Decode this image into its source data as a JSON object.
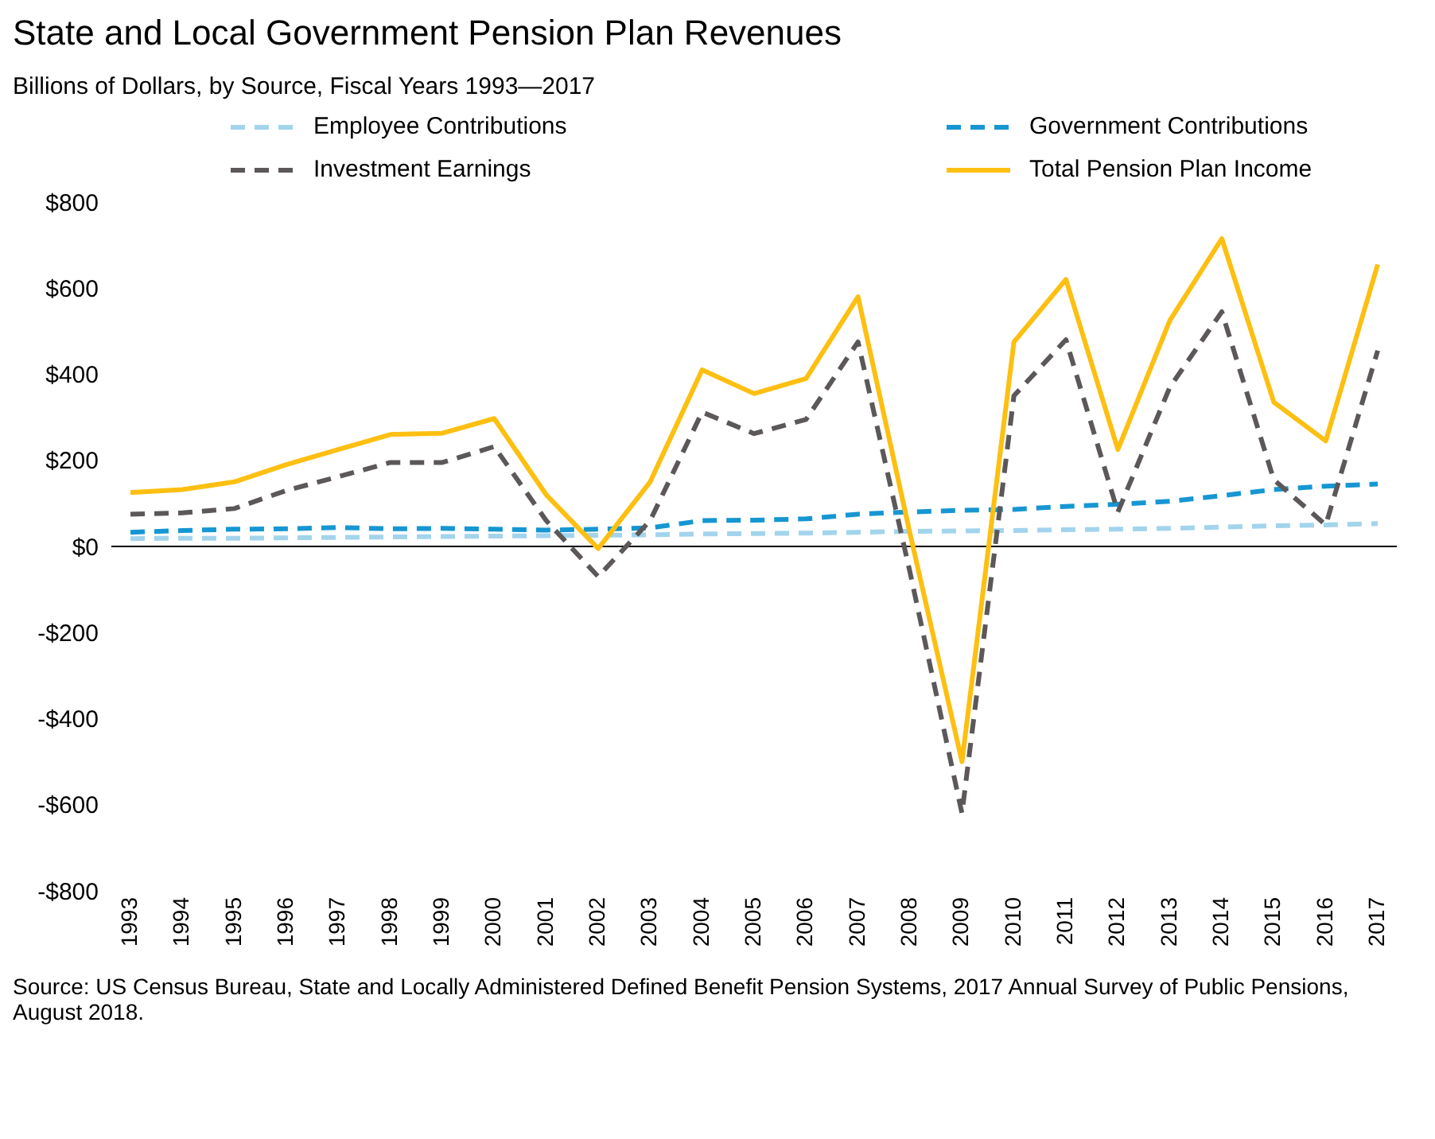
{
  "chart_data": {
    "type": "line",
    "title": "State and Local Government Pension Plan Revenues",
    "subtitle": "Billions of Dollars, by Source, Fiscal Years 1993—2017",
    "categories": [
      "1993",
      "1994",
      "1995",
      "1996",
      "1997",
      "1998",
      "1999",
      "2000",
      "2001",
      "2002",
      "2003",
      "2004",
      "2005",
      "2006",
      "2007",
      "2008",
      "2009",
      "2010",
      "2011",
      "2012",
      "2013",
      "2014",
      "2015",
      "2016",
      "2017"
    ],
    "series": [
      {
        "name": "Employee Contributions",
        "color": "#a2d4ec",
        "line_style": "dashed",
        "values": [
          18,
          19,
          19,
          20,
          21,
          22,
          23,
          24,
          25,
          26,
          27,
          29,
          30,
          31,
          33,
          35,
          36,
          37,
          39,
          40,
          42,
          45,
          48,
          50,
          53
        ]
      },
      {
        "name": "Government Contributions",
        "color": "#1696d2",
        "line_style": "dashed",
        "values": [
          33,
          37,
          40,
          41,
          44,
          41,
          42,
          40,
          38,
          40,
          43,
          60,
          61,
          64,
          75,
          80,
          84,
          86,
          93,
          98,
          105,
          118,
          132,
          140,
          145
        ]
      },
      {
        "name": "Investment Earnings",
        "color": "#5c5859",
        "line_style": "dashed",
        "values": [
          75,
          78,
          88,
          130,
          162,
          195,
          195,
          232,
          60,
          -70,
          60,
          312,
          262,
          295,
          475,
          -60,
          -620,
          350,
          480,
          80,
          370,
          545,
          155,
          50,
          455
        ]
      },
      {
        "name": "Total Pension Plan Income",
        "color": "#fdbf11",
        "line_style": "solid",
        "values": [
          125,
          132,
          150,
          190,
          225,
          260,
          263,
          297,
          120,
          -5,
          150,
          410,
          355,
          390,
          580,
          30,
          -500,
          475,
          620,
          225,
          525,
          715,
          335,
          245,
          655
        ]
      }
    ],
    "ylim": [
      -800,
      800
    ],
    "yticks": [
      {
        "value": -800,
        "label": "-$800"
      },
      {
        "value": -600,
        "label": "-$600"
      },
      {
        "value": -400,
        "label": "-$400"
      },
      {
        "value": -200,
        "label": "-$200"
      },
      {
        "value": 0,
        "label": "$0"
      },
      {
        "value": 200,
        "label": "$200"
      },
      {
        "value": 400,
        "label": "$400"
      },
      {
        "value": 600,
        "label": "$600"
      },
      {
        "value": 800,
        "label": "$800"
      }
    ],
    "ref_lines": [
      {
        "axis": "y",
        "value": 0,
        "color": "#000000"
      }
    ],
    "grid": false,
    "legend": "top",
    "marker": "none",
    "annotations": [
      "Source: US Census Bureau, State and Locally Administered Defined Benefit Pension Systems, 2017 Annual Survey of Public Pensions, August 2018."
    ]
  }
}
